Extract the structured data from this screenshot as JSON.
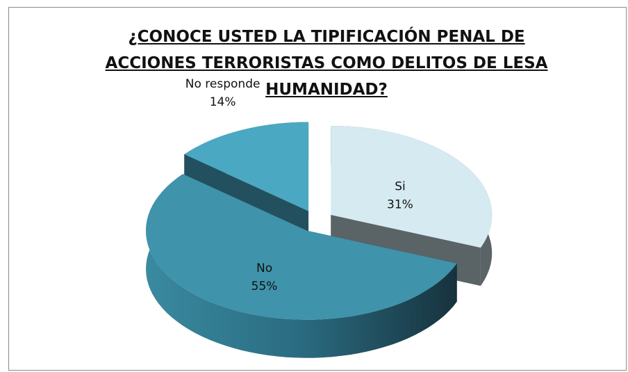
{
  "chart_data": {
    "type": "pie",
    "title": "¿CONOCE USTED LA TIPIFICACIÓN PENAL DE ACCIONES TERRORISTAS COMO DELITOS DE LESA HUMANIDAD?",
    "categories": [
      "Si",
      "No",
      "No responde"
    ],
    "values": [
      31,
      55,
      14
    ],
    "value_labels": [
      "31%",
      "55%",
      "14%"
    ],
    "colors": [
      "#d6eaf1",
      "#3f93ab",
      "#4aa8c3"
    ],
    "side_colors": [
      "#5a6366",
      "#1f4756",
      "#23505e"
    ],
    "three_d": true,
    "exploded": true
  }
}
